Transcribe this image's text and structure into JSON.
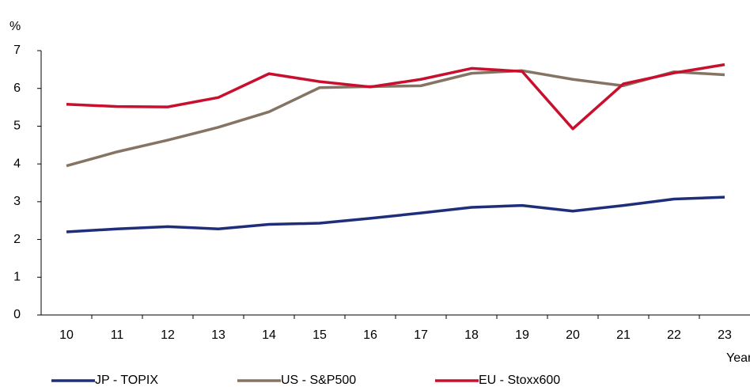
{
  "chart_data": {
    "type": "line",
    "y_label": "%",
    "x_label": "Year",
    "categories": [
      "10",
      "11",
      "12",
      "13",
      "14",
      "15",
      "16",
      "17",
      "18",
      "19",
      "20",
      "21",
      "22",
      "23"
    ],
    "series": [
      {
        "name": "JP - TOPIX",
        "color": "#1f2e7a",
        "values": [
          2.2,
          2.28,
          2.34,
          2.28,
          2.4,
          2.43,
          2.56,
          2.7,
          2.85,
          2.9,
          2.75,
          2.9,
          3.07,
          3.12
        ]
      },
      {
        "name": "US - S&P500",
        "color": "#857463",
        "values": [
          3.95,
          4.32,
          4.63,
          4.97,
          5.38,
          6.02,
          6.05,
          6.07,
          6.4,
          6.47,
          6.24,
          6.07,
          6.44,
          6.36
        ]
      },
      {
        "name": "EU - Stoxx600",
        "color": "#c8102e",
        "values": [
          5.58,
          5.52,
          5.51,
          5.76,
          6.39,
          6.18,
          6.04,
          6.24,
          6.53,
          6.45,
          4.93,
          6.12,
          6.41,
          6.63
        ]
      }
    ],
    "ylim": [
      0,
      7
    ],
    "yticks": [
      0,
      1,
      2,
      3,
      4,
      5,
      6,
      7
    ],
    "grid": false
  }
}
